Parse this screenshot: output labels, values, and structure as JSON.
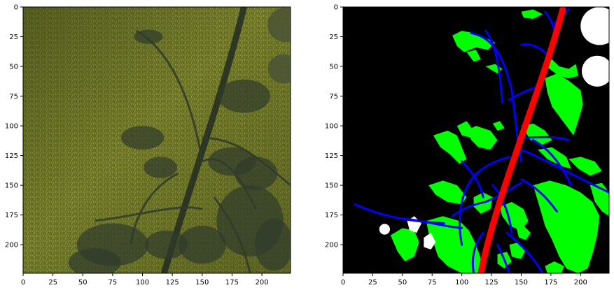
{
  "figure": {
    "panels": [
      {
        "kind": "photo",
        "xlim": [
          0,
          224
        ],
        "ylim": [
          224,
          0
        ],
        "x_ticks": [
          "0",
          "25",
          "50",
          "75",
          "100",
          "125",
          "150",
          "175",
          "200"
        ],
        "y_ticks": [
          "0",
          "25",
          "50",
          "75",
          "100",
          "125",
          "150",
          "175",
          "200"
        ],
        "colors": {
          "grass_light": "#8e9632",
          "grass_mid": "#6d7426",
          "grass_dark": "#4e561c",
          "plant": "#2f3a2c",
          "plant_dark": "#222b21"
        }
      },
      {
        "kind": "segmentation-mask",
        "xlim": [
          0,
          224
        ],
        "ylim": [
          224,
          0
        ],
        "x_ticks": [
          "0",
          "25",
          "50",
          "75",
          "100",
          "125",
          "150",
          "175",
          "200"
        ],
        "y_ticks": [
          "0",
          "25",
          "50",
          "75",
          "100",
          "125",
          "150",
          "175",
          "200"
        ],
        "colors": {
          "background": "#000000",
          "stem": "#ff0000",
          "branch": "#0000ff",
          "leaf": "#00ff00",
          "fruit": "#ffffff"
        }
      }
    ]
  }
}
